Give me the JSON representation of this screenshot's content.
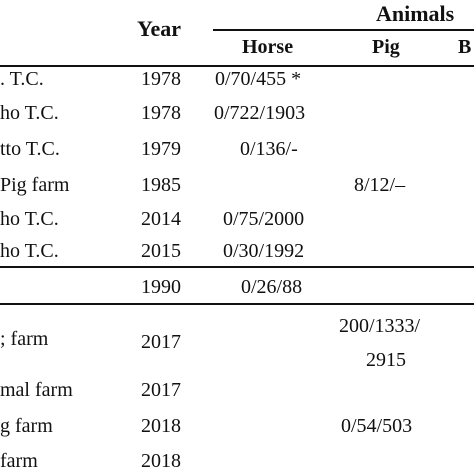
{
  "table": {
    "header": {
      "year": "Year",
      "animals_group": "Animals",
      "horse": "Horse",
      "pig": "Pig",
      "third_col_partial": "B"
    },
    "rows": [
      {
        "location": ". T.C.",
        "year": "1978",
        "horse": "0/70/455 *",
        "pig": ""
      },
      {
        "location": "ho T.C.",
        "year": "1978",
        "horse": "0/722/1903",
        "pig": ""
      },
      {
        "location": "tto T.C.",
        "year": "1979",
        "horse": "0/136/-",
        "pig": ""
      },
      {
        "location": "Pig farm",
        "year": "1985",
        "horse": "",
        "pig": "8/12/–"
      },
      {
        "location": "ho T.C.",
        "year": "2014",
        "horse": "0/75/2000",
        "pig": ""
      },
      {
        "location": "ho T.C.",
        "year": "2015",
        "horse": "0/30/1992",
        "pig": ""
      },
      {
        "location": "",
        "year": "1990",
        "horse": "0/26/88",
        "pig": ""
      },
      {
        "location": "; farm",
        "year": "2017",
        "horse": "",
        "pig": "200/1333/",
        "pig_line2": "2915"
      },
      {
        "location": "mal farm",
        "year": "2017",
        "horse": "",
        "pig": ""
      },
      {
        "location": "g farm",
        "year": "2018",
        "horse": "",
        "pig": "0/54/503"
      },
      {
        "location": "farm",
        "year": "2018",
        "horse": "",
        "pig": ""
      }
    ]
  }
}
